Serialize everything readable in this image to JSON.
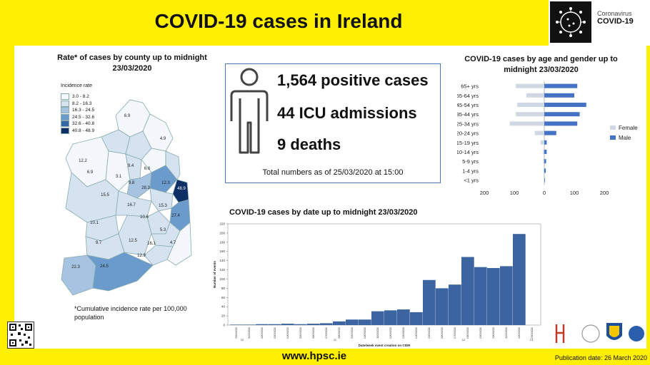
{
  "header": {
    "title": "COVID-19 cases in Ireland",
    "logo_line1": "Coronavirus",
    "logo_line2": "COVID-19"
  },
  "colors": {
    "banner_yellow": "#ffef00",
    "bar_blue": "#3b64a0",
    "male_blue": "#4472c4",
    "female_grey": "#d0d8e4"
  },
  "map": {
    "title": "Rate* of cases by county up to midnight 23/03/2020",
    "legend_title": "Incidence rate",
    "legend": [
      {
        "label": "3.0 - 8.2",
        "color": "#f4f8fc"
      },
      {
        "label": "8.2 - 16.3",
        "color": "#d5e3f1"
      },
      {
        "label": "16.3 - 24.5",
        "color": "#a6c4e2"
      },
      {
        "label": "24.5 - 32.6",
        "color": "#6a9bcc"
      },
      {
        "label": "32.6 - 40.8",
        "color": "#3367a8"
      },
      {
        "label": "40.8 - 48.9",
        "color": "#0e2f66"
      }
    ],
    "county_labels": [
      "6.9",
      "4.9",
      "12.2",
      "9.4",
      "6.6",
      "6.9",
      "3.1",
      "9.8",
      "28.3",
      "12.3",
      "15.5",
      "16.7",
      "15.3",
      "48.9",
      "10.6",
      "27.4",
      "10.1",
      "5.3",
      "9.7",
      "12.5",
      "16.1",
      "4.7",
      "12.9",
      "22.3",
      "24.5"
    ],
    "footnote": "*Cumulative incidence rate per 100,000  population"
  },
  "stats": {
    "positive": "1,564 positive cases",
    "icu": "44 ICU admissions",
    "deaths": "9 deaths",
    "note": "Total numbers as of 25/03/2020 at 15:00"
  },
  "chart_data": [
    {
      "type": "bar",
      "orientation": "horizontal",
      "title": "COVID-19 cases by age and gender up to midnight 23/03/2020",
      "categories": [
        "65+ yrs",
        "55-64 yrs",
        "45-54 yrs",
        "35-44 yrs",
        "25-34 yrs",
        "20-24 yrs",
        "15-19 yrs",
        "10-14 yrs",
        "5-9 yrs",
        "1-4 yrs",
        "<1 yrs"
      ],
      "series": [
        {
          "name": "Female",
          "values": [
            95,
            60,
            90,
            95,
            115,
            32,
            12,
            5,
            4,
            3,
            1
          ]
        },
        {
          "name": "Male",
          "values": [
            110,
            100,
            140,
            118,
            110,
            40,
            8,
            8,
            6,
            5,
            2
          ]
        }
      ],
      "xlim": [
        -200,
        200
      ],
      "xticks": [
        "200",
        "100",
        "0",
        "100",
        "200"
      ],
      "legend": "right"
    },
    {
      "type": "bar",
      "title": "COVID-19 cases by date up to midnight 23/03/2020",
      "xlabel": "Date/week event creation on CIDR",
      "ylabel": "Number of events",
      "ylim": [
        0,
        220
      ],
      "yticks": [
        "0",
        "20",
        "40",
        "60",
        "80",
        "100",
        "120",
        "140",
        "160",
        "180",
        "200",
        "220"
      ],
      "categories": [
        "29/02/2020",
        "01/03/2020",
        "02/03/2020",
        "03/03/2020",
        "04/03/2020",
        "05/03/2020",
        "06/03/2020",
        "07/03/2020",
        "08/03/2020",
        "09/03/2020",
        "10/03/2020",
        "11/03/2020",
        "12/03/2020",
        "13/03/2020",
        "14/03/2020",
        "15/03/2020",
        "16/03/2020",
        "17/03/2020",
        "18/03/2020",
        "19/03/2020",
        "20/03/2020",
        "21/03/2020",
        "22/03/2020",
        "23/03/2020"
      ],
      "values": [
        1,
        1,
        2,
        2,
        3,
        2,
        3,
        4,
        8,
        12,
        12,
        30,
        32,
        34,
        28,
        98,
        80,
        88,
        148,
        126,
        124,
        128,
        198,
        0
      ],
      "week_labels": [
        "10",
        "11",
        "12",
        "13"
      ],
      "grid": false
    }
  ],
  "footer": {
    "url": "www.hpsc.ie",
    "publication": "Publication date: 26 March 2020"
  }
}
